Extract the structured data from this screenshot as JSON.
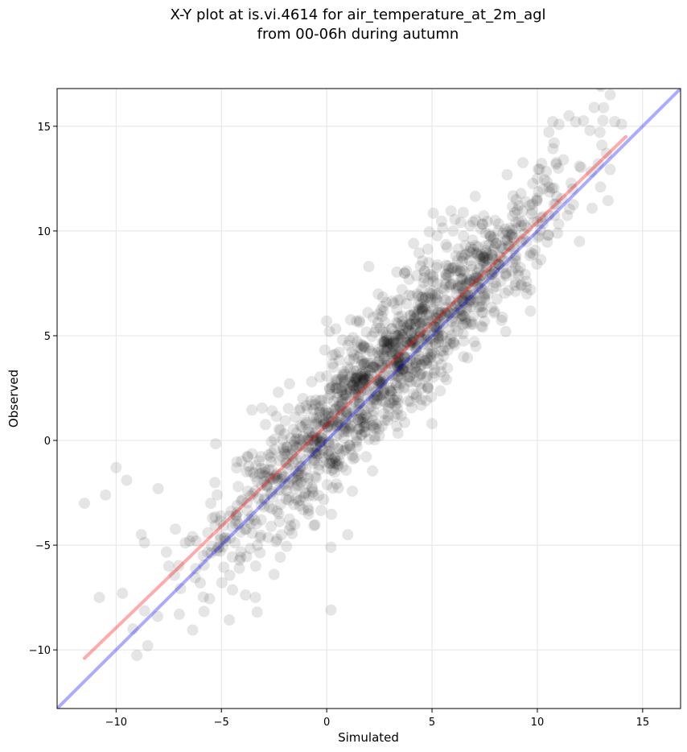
{
  "chart_data": {
    "type": "scatter",
    "title_lines": [
      "X-Y plot at is.vi.4614 for air_temperature_at_2m_agl",
      "from 00-06h during autumn"
    ],
    "xlabel": "Simulated",
    "ylabel": "Observed",
    "xlim": [
      -12.8,
      16.8
    ],
    "ylim": [
      -12.8,
      16.8
    ],
    "xticks": [
      -10,
      -5,
      0,
      5,
      10,
      15
    ],
    "yticks": [
      -10,
      -5,
      0,
      5,
      10,
      15
    ],
    "xtick_labels": [
      "−10",
      "−5",
      "0",
      "5",
      "10",
      "15"
    ],
    "ytick_labels": [
      "−10",
      "−5",
      "0",
      "5",
      "10",
      "15"
    ],
    "grid": true,
    "point_color": "#000000",
    "point_opacity": 0.1,
    "approx_point_count": 1500,
    "trend": {
      "x_min": -11.5,
      "x_max": 14.0,
      "mean_offset": 0.6,
      "spread": 1.6
    },
    "sample_points": [
      [
        -11.5,
        -3.0
      ],
      [
        -10.8,
        -7.5
      ],
      [
        -10.5,
        -2.6
      ],
      [
        -10.0,
        -1.3
      ],
      [
        -9.7,
        -7.3
      ],
      [
        -9.5,
        -1.9
      ],
      [
        -9.2,
        -9.0
      ],
      [
        -8.8,
        -4.5
      ],
      [
        -8.5,
        -9.8
      ],
      [
        -8.0,
        -2.3
      ],
      [
        -7.5,
        -6.0
      ],
      [
        -7.0,
        -8.3
      ],
      [
        -6.5,
        -4.8
      ],
      [
        -6.0,
        -6.8
      ],
      [
        -5.5,
        -3.0
      ],
      [
        -5.2,
        -2.6
      ],
      [
        -4.8,
        -4.8
      ],
      [
        -4.2,
        -2.2
      ],
      [
        -3.8,
        -1.5
      ],
      [
        -3.3,
        -8.2
      ],
      [
        -2.5,
        -6.4
      ],
      [
        -2.3,
        2.3
      ],
      [
        -1.5,
        -2.3
      ],
      [
        -1.0,
        -2.5
      ],
      [
        -0.5,
        0.9
      ],
      [
        0.0,
        5.7
      ],
      [
        0.2,
        -8.1
      ],
      [
        0.2,
        -5.1
      ],
      [
        0.5,
        1.6
      ],
      [
        1.0,
        -4.5
      ],
      [
        1.0,
        3.5
      ],
      [
        1.5,
        1.0
      ],
      [
        2.0,
        8.3
      ],
      [
        2.5,
        3.8
      ],
      [
        3.0,
        1.8
      ],
      [
        3.5,
        6.7
      ],
      [
        4.0,
        4.7
      ],
      [
        4.5,
        3.6
      ],
      [
        5.0,
        0.8
      ],
      [
        5.0,
        7.0
      ],
      [
        5.5,
        5.0
      ],
      [
        6.0,
        10.0
      ],
      [
        6.5,
        4.0
      ],
      [
        7.0,
        7.0
      ],
      [
        7.5,
        8.0
      ],
      [
        8.0,
        10.5
      ],
      [
        8.5,
        5.2
      ],
      [
        9.0,
        11.5
      ],
      [
        9.5,
        7.0
      ],
      [
        10.0,
        12.5
      ],
      [
        10.5,
        9.8
      ],
      [
        11.0,
        13.0
      ],
      [
        11.5,
        15.5
      ],
      [
        12.0,
        9.5
      ],
      [
        12.5,
        14.8
      ],
      [
        13.0,
        12.1
      ],
      [
        14.0,
        15.1
      ]
    ],
    "lines": [
      {
        "role": "identity",
        "color": "#0000ff",
        "opacity": 0.33,
        "x": [
          -12.8,
          16.8
        ],
        "y": [
          -12.8,
          16.8
        ]
      },
      {
        "role": "regression",
        "color": "#ff0000",
        "opacity": 0.33,
        "x": [
          -11.5,
          14.2
        ],
        "y": [
          -10.4,
          14.5
        ]
      }
    ]
  }
}
